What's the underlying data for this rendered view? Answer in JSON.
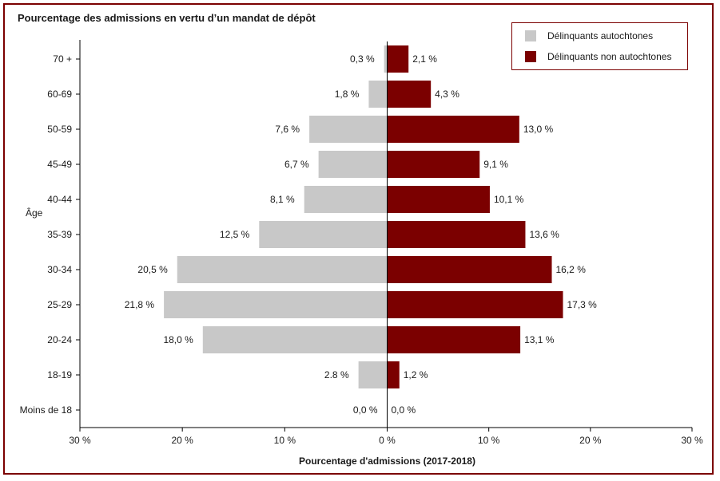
{
  "chart_data": {
    "type": "bar",
    "orientation": "horizontal-diverging",
    "title": "Pourcentage des admissions en vertu d’un mandat de dépôt",
    "xlabel": "Pourcentage d'admissions (2017-2018)",
    "ylabel": "Âge",
    "categories": [
      "70 +",
      "60-69",
      "50-59",
      "45-49",
      "40-44",
      "35-39",
      "30-34",
      "25-29",
      "20-24",
      "18-19",
      "Moins de 18"
    ],
    "series": [
      {
        "name": "Délinquants autochtones",
        "color": "#c8c8c8",
        "side": "left",
        "values": [
          0.3,
          1.8,
          7.6,
          6.7,
          8.1,
          12.5,
          20.5,
          21.8,
          18.0,
          2.8,
          0.0
        ],
        "labels": [
          "0,3 %",
          "1,8 %",
          "7,6 %",
          "6,7 %",
          "8,1 %",
          "12,5 %",
          "20,5 %",
          "21,8 %",
          "18,0 %",
          "2.8 %",
          "0,0 %"
        ]
      },
      {
        "name": "Délinquants non autochtones",
        "color": "#7b0000",
        "side": "right",
        "values": [
          2.1,
          4.3,
          13.0,
          9.1,
          10.1,
          13.6,
          16.2,
          17.3,
          13.1,
          1.2,
          0.0
        ],
        "labels": [
          "2,1 %",
          "4,3 %",
          "13,0 %",
          "9,1 %",
          "10,1 %",
          "13,6 %",
          "16,2 %",
          "17,3 %",
          "13,1 %",
          "1,2 %",
          "0,0 %"
        ]
      }
    ],
    "xlim": [
      -30,
      30
    ],
    "xticks": [
      -30,
      -20,
      -10,
      0,
      10,
      20,
      30
    ],
    "xtick_labels": [
      "30 %",
      "20 %",
      "10 %",
      "0 %",
      "10 %",
      "20 %",
      "30 %"
    ],
    "grid": false,
    "legend_position": "top-right"
  }
}
